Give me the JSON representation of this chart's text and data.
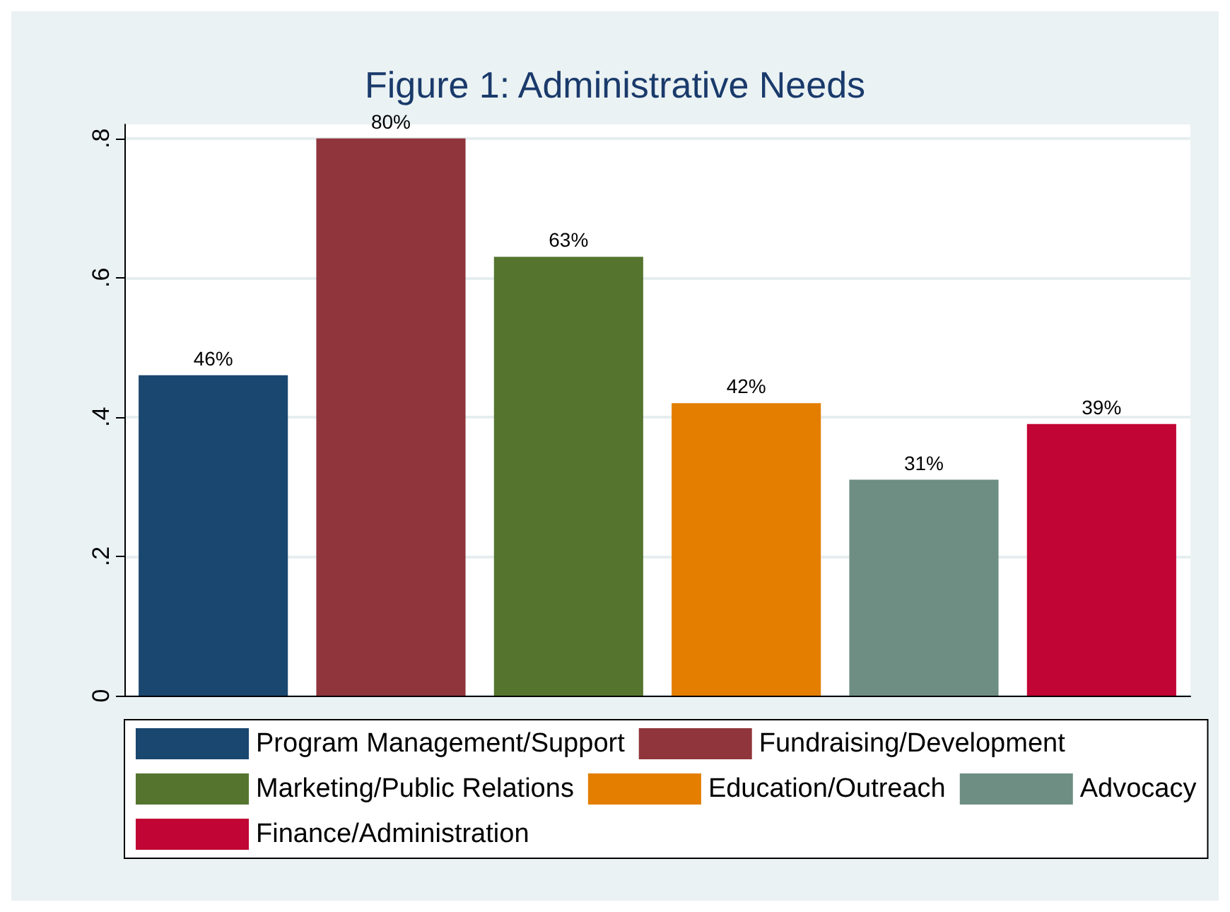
{
  "chart_data": {
    "type": "bar",
    "title": "Figure 1: Administrative Needs",
    "categories": [
      null,
      null,
      null,
      null,
      null,
      null
    ],
    "stacked": true,
    "series": [
      {
        "name": "Program Management/Support",
        "color": "#1a476f",
        "values": [
          0.46,
          null,
          null,
          null,
          null,
          null
        ],
        "value_labels": [
          "46%",
          null,
          null,
          null,
          null,
          null
        ]
      },
      {
        "name": "Fundraising/Development",
        "color": "#90353b",
        "values": [
          null,
          0.8,
          null,
          null,
          null,
          null
        ],
        "value_labels": [
          null,
          "80%",
          null,
          null,
          null,
          null
        ]
      },
      {
        "name": "Marketing/Public Relations",
        "color": "#55752f",
        "values": [
          null,
          null,
          0.63,
          null,
          null,
          null
        ],
        "value_labels": [
          null,
          null,
          "63%",
          null,
          null,
          null
        ]
      },
      {
        "name": "Education/Outreach",
        "color": "#e37e00",
        "values": [
          null,
          null,
          null,
          0.42,
          null,
          null
        ],
        "value_labels": [
          null,
          null,
          null,
          "42%",
          null,
          null
        ]
      },
      {
        "name": "Advocacy",
        "color": "#6e8e84",
        "values": [
          null,
          null,
          null,
          null,
          0.31,
          null
        ],
        "value_labels": [
          null,
          null,
          null,
          null,
          "31%",
          null
        ]
      },
      {
        "name": "Finance/Administration",
        "color": "#c10534",
        "values": [
          null,
          null,
          null,
          null,
          null,
          0.39
        ],
        "value_labels": [
          null,
          null,
          null,
          null,
          null,
          "39%"
        ]
      }
    ],
    "ylim": [
      0,
      0.82
    ],
    "yticks": [
      {
        "value": 0,
        "label": "0"
      },
      {
        "value": 0.2,
        "label": ".2"
      },
      {
        "value": 0.4,
        "label": ".4"
      },
      {
        "value": 0.6,
        "label": ".6"
      },
      {
        "value": 0.8,
        "label": ".8"
      }
    ],
    "grid": "y",
    "legend": "bottom"
  }
}
